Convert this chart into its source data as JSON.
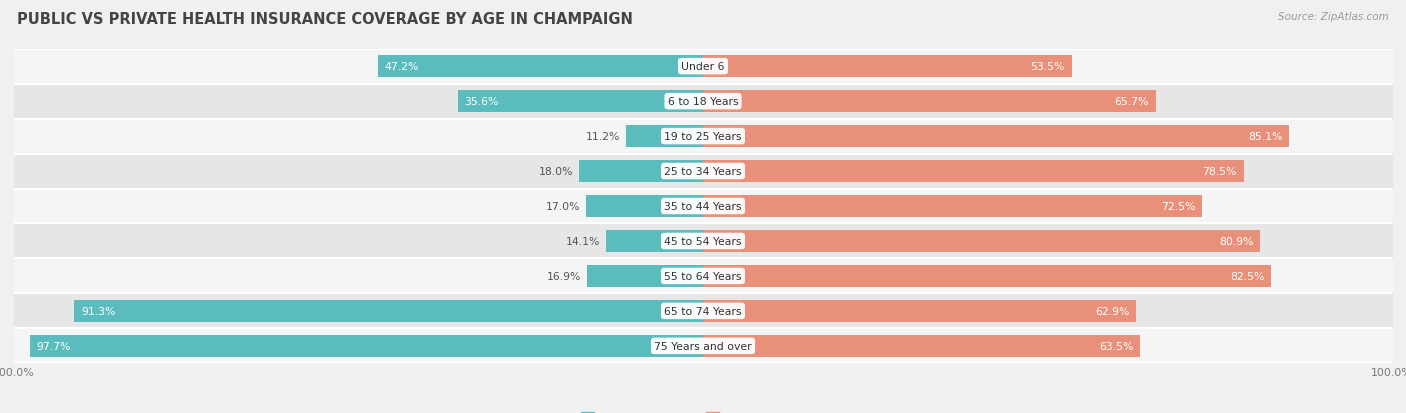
{
  "title": "PUBLIC VS PRIVATE HEALTH INSURANCE COVERAGE BY AGE IN CHAMPAIGN",
  "source": "Source: ZipAtlas.com",
  "categories": [
    "Under 6",
    "6 to 18 Years",
    "19 to 25 Years",
    "25 to 34 Years",
    "35 to 44 Years",
    "45 to 54 Years",
    "55 to 64 Years",
    "65 to 74 Years",
    "75 Years and over"
  ],
  "public_values": [
    47.2,
    35.6,
    11.2,
    18.0,
    17.0,
    14.1,
    16.9,
    91.3,
    97.7
  ],
  "private_values": [
    53.5,
    65.7,
    85.1,
    78.5,
    72.5,
    80.9,
    82.5,
    62.9,
    63.5
  ],
  "public_color": "#5bbcbd",
  "private_color": "#e8907a",
  "bg_color": "#f0f0f0",
  "row_bg_even": "#f5f5f5",
  "row_bg_odd": "#e6e6e6",
  "bar_height": 0.62,
  "title_fontsize": 10.5,
  "label_fontsize": 7.8,
  "category_fontsize": 7.8,
  "legend_fontsize": 8.0,
  "source_fontsize": 7.5
}
